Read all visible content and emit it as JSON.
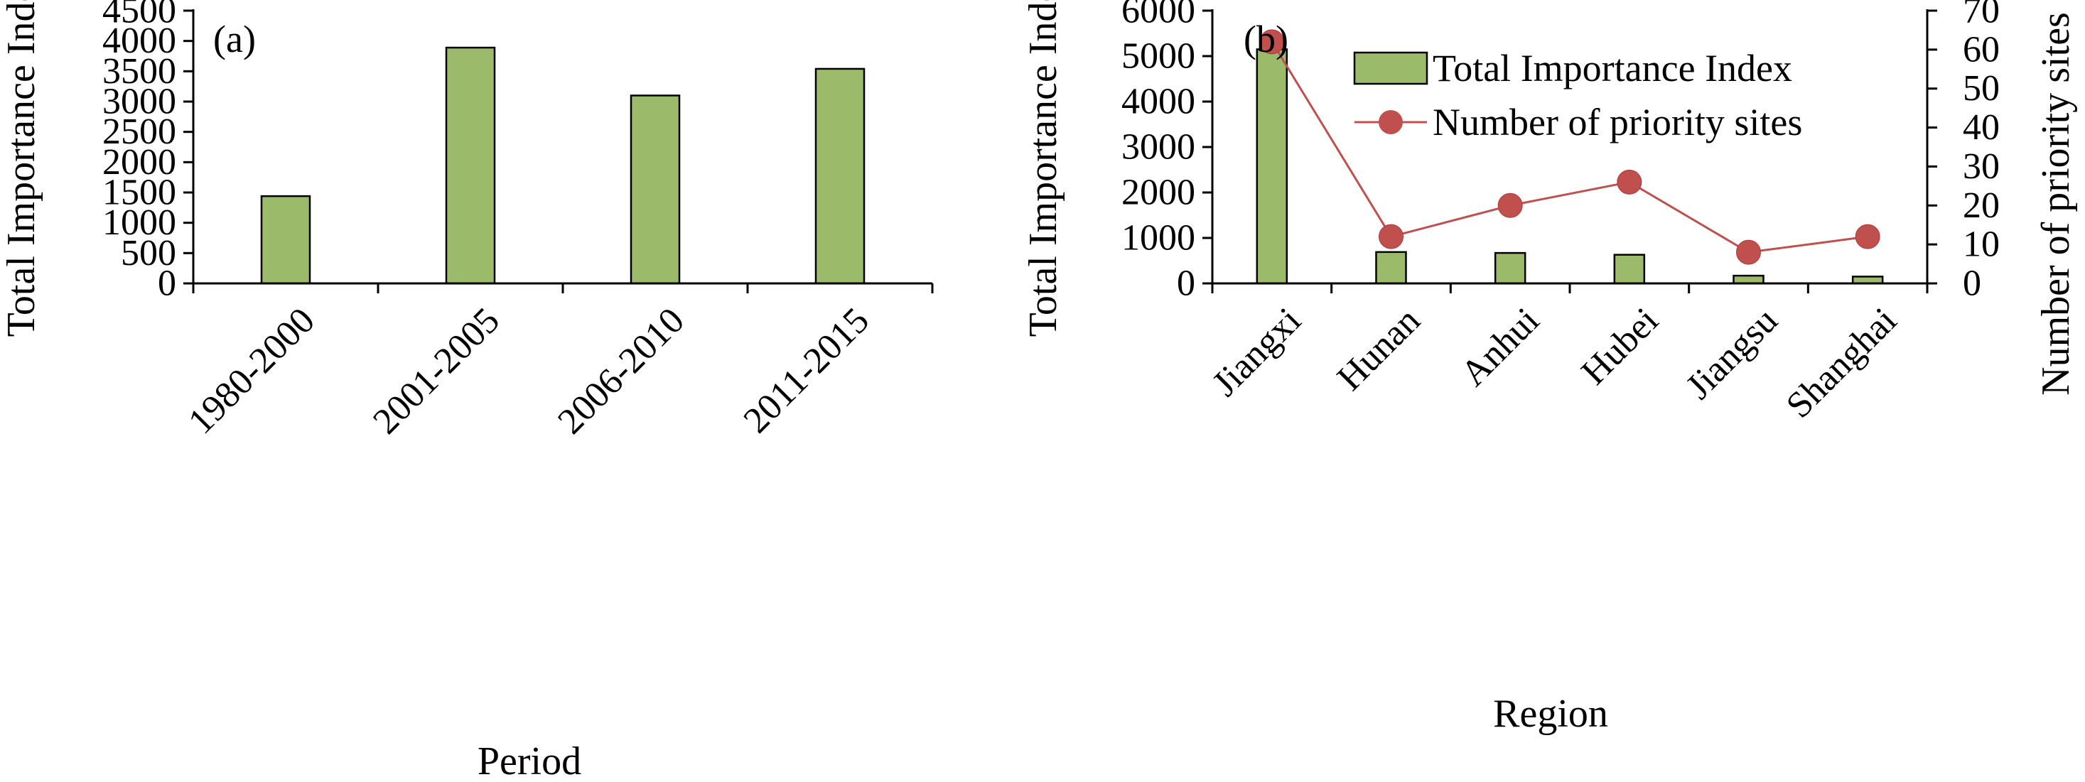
{
  "chart_data": [
    {
      "type": "bar",
      "panel_label": "(a)",
      "categories": [
        "1980-2000",
        "2001-2005",
        "2006-2010",
        "2011-2015"
      ],
      "values": [
        1440,
        3890,
        3100,
        3540
      ],
      "xlabel": "Period",
      "ylabel": "Total Importance Index",
      "ylim": [
        0,
        4500
      ],
      "yticks": [
        "0",
        "500",
        "1000",
        "1500",
        "2000",
        "2500",
        "3000",
        "3500",
        "4000",
        "4500"
      ],
      "bar_color": "#9bbb6b",
      "grid": false,
      "legend": "none"
    },
    {
      "type": "bar",
      "panel_label": "(b)",
      "categories": [
        "Jiangxi",
        "Hunan",
        "Anhui",
        "Hubei",
        "Jiangsu",
        "Shanghai"
      ],
      "series": [
        {
          "name": "Total Importance Index",
          "type": "bar",
          "axis": "left",
          "values": [
            5150,
            690,
            670,
            630,
            170,
            150
          ],
          "color": "#9bbb6b"
        },
        {
          "name": "Number of priority sites",
          "type": "line",
          "axis": "right",
          "values": [
            62,
            12,
            20,
            26,
            8,
            12
          ],
          "color": "#c0504d"
        }
      ],
      "xlabel": "Region",
      "ylabel": "Total Importance Index",
      "ylabel_right": "Number of priority sites",
      "ylim": [
        0,
        6000
      ],
      "ylim_right": [
        0,
        70
      ],
      "yticks": [
        "0",
        "1000",
        "2000",
        "3000",
        "4000",
        "5000",
        "6000"
      ],
      "yticks_right": [
        "0",
        "10",
        "20",
        "30",
        "40",
        "50",
        "60",
        "70"
      ],
      "grid": false,
      "legend": "top-right"
    }
  ]
}
